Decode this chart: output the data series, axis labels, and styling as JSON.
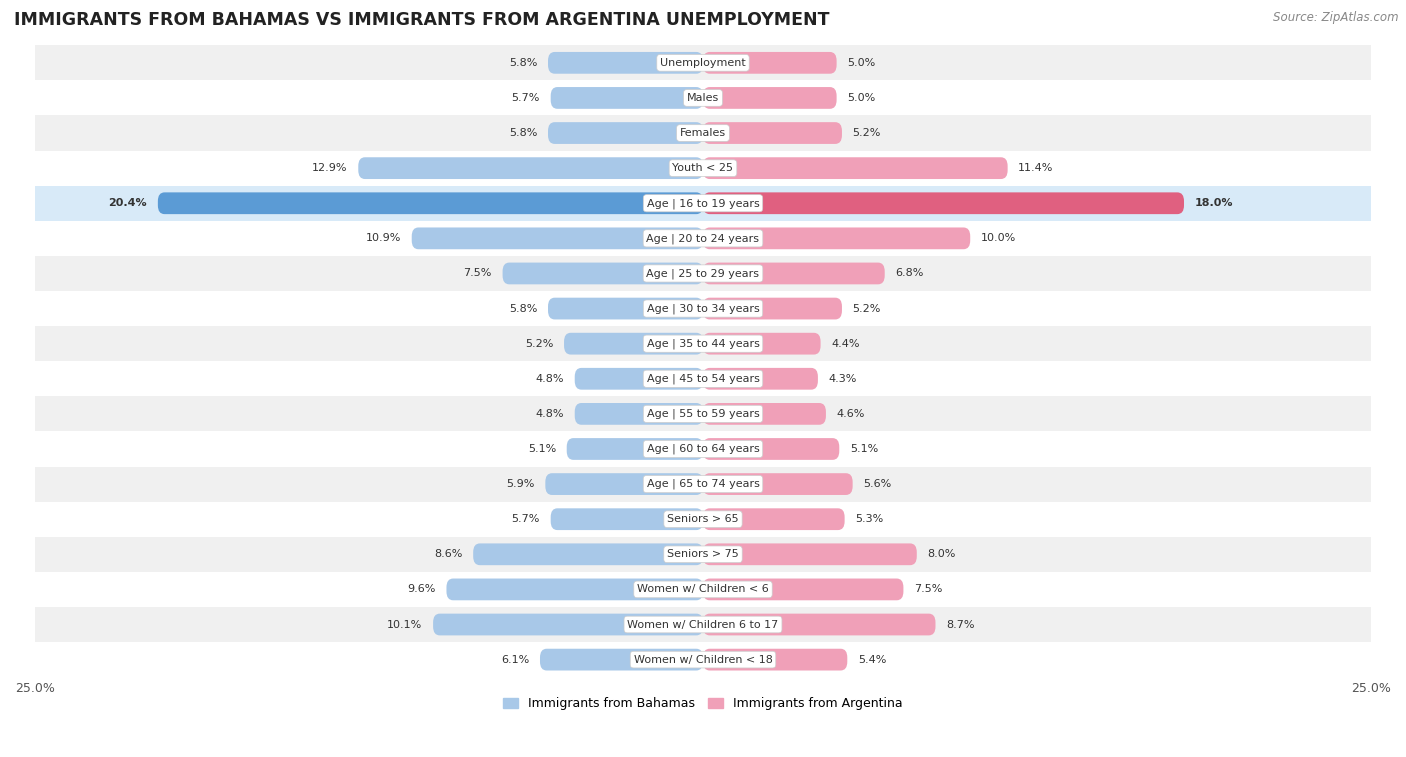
{
  "title": "IMMIGRANTS FROM BAHAMAS VS IMMIGRANTS FROM ARGENTINA UNEMPLOYMENT",
  "source": "Source: ZipAtlas.com",
  "categories": [
    "Unemployment",
    "Males",
    "Females",
    "Youth < 25",
    "Age | 16 to 19 years",
    "Age | 20 to 24 years",
    "Age | 25 to 29 years",
    "Age | 30 to 34 years",
    "Age | 35 to 44 years",
    "Age | 45 to 54 years",
    "Age | 55 to 59 years",
    "Age | 60 to 64 years",
    "Age | 65 to 74 years",
    "Seniors > 65",
    "Seniors > 75",
    "Women w/ Children < 6",
    "Women w/ Children 6 to 17",
    "Women w/ Children < 18"
  ],
  "bahamas_values": [
    5.8,
    5.7,
    5.8,
    12.9,
    20.4,
    10.9,
    7.5,
    5.8,
    5.2,
    4.8,
    4.8,
    5.1,
    5.9,
    5.7,
    8.6,
    9.6,
    10.1,
    6.1
  ],
  "argentina_values": [
    5.0,
    5.0,
    5.2,
    11.4,
    18.0,
    10.0,
    6.8,
    5.2,
    4.4,
    4.3,
    4.6,
    5.1,
    5.6,
    5.3,
    8.0,
    7.5,
    8.7,
    5.4
  ],
  "bahamas_color": "#a8c8e8",
  "argentina_color": "#f0a0b8",
  "highlight_bahamas_color": "#5b9bd5",
  "highlight_argentina_color": "#e06080",
  "row_bg_light": "#f0f0f0",
  "row_bg_dark": "#e0e0e0",
  "row_bg_white": "#ffffff",
  "highlight_row_bg": "#d8eaf8",
  "xlim": 25.0,
  "bar_height": 0.62,
  "legend_bahamas": "Immigrants from Bahamas",
  "legend_argentina": "Immigrants from Argentina",
  "title_fontsize": 12.5,
  "source_fontsize": 8.5,
  "label_fontsize": 8.0,
  "category_fontsize": 8.0,
  "highlight_indices": [
    4
  ]
}
